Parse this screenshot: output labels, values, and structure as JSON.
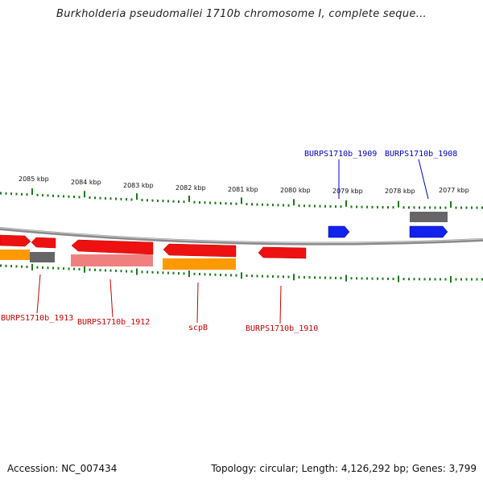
{
  "title": "Burkholderia pseudomallei 1710b chromosome I, complete seque...",
  "footer": {
    "accession": "Accession: NC_007434",
    "summary": "Topology: circular; Length: 4,126,292 bp; Genes: 3,799"
  },
  "scale": {
    "kbp_labels": [
      "2085 kbp",
      "2084 kbp",
      "2083 kbp",
      "2082 kbp",
      "2081 kbp",
      "2080 kbp",
      "2079 kbp",
      "2078 kbp",
      "2077 kbp"
    ]
  },
  "gene_labels": {
    "top": [
      "BURPS1710b_1909",
      "BURPS1710b_1908"
    ],
    "bottom": [
      "BURPS1710b_1913",
      "BURPS1710b_1912",
      "scpB",
      "BURPS1710b_1910"
    ]
  },
  "colors": {
    "minus_gene": "#ee1111",
    "plus_gene": "#1122ee",
    "cds_orange": "#ff9900",
    "pseudo_pink": "#f08080",
    "grey_feature": "#666666",
    "tick_green": "#1a7a1a",
    "backbone": "#888888",
    "label_red": "#cc0000",
    "label_blue": "#0000cc"
  }
}
